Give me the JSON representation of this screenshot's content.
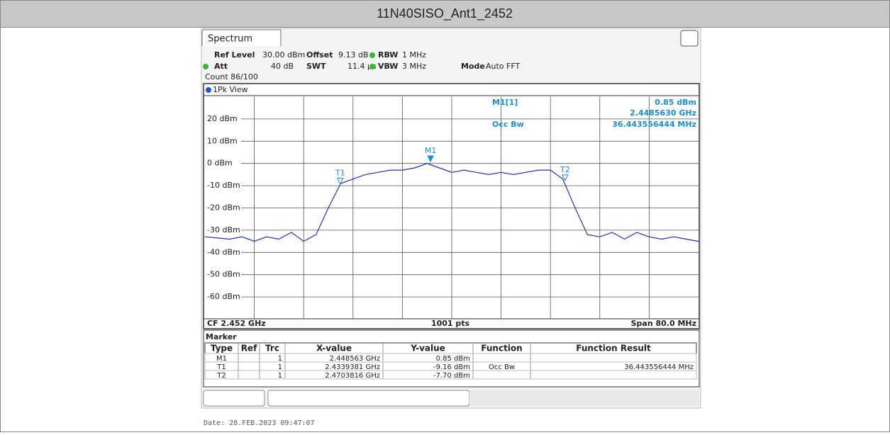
{
  "window_title": "11N40SISO_Ant1_2452",
  "tab": "Spectrum",
  "settings": {
    "ref_level_label": "Ref Level",
    "ref_level": "30.00 dBm",
    "offset_label": "Offset",
    "offset": "9.13 dB",
    "rbw_label": "RBW",
    "rbw": "1 MHz",
    "att_label": "Att",
    "att": "40 dB",
    "swt_label": "SWT",
    "swt": "11.4 µs",
    "vbw_label": "VBW",
    "vbw": "3 MHz",
    "mode_label": "Mode",
    "mode": "Auto FFT",
    "count": "Count 86/100"
  },
  "view_label": "1Pk View",
  "info": {
    "marker": "M1[1]",
    "level": "0.85 dBm",
    "freq": "2.4485630 GHz",
    "function": "Occ Bw",
    "result": "36.443556444 MHz"
  },
  "footer": {
    "cf": "CF 2.452 GHz",
    "pts": "1001 pts",
    "span": "Span 80.0 MHz"
  },
  "chart_data": {
    "type": "line",
    "x": [
      2.412,
      2.414,
      2.416,
      2.418,
      2.42,
      2.422,
      2.424,
      2.426,
      2.428,
      2.43,
      2.432,
      2.434,
      2.436,
      2.438,
      2.44,
      2.442,
      2.444,
      2.446,
      2.448,
      2.45,
      2.452,
      2.454,
      2.456,
      2.458,
      2.46,
      2.462,
      2.464,
      2.466,
      2.468,
      2.47,
      2.472,
      2.474,
      2.476,
      2.478,
      2.48,
      2.482,
      2.484,
      2.486,
      2.488,
      2.49,
      2.492
    ],
    "series": [
      {
        "name": "1Pk View",
        "color": "#2233aa",
        "values": [
          -33,
          -33.5,
          -34,
          -33,
          -35,
          -33,
          -34,
          -31,
          -35,
          -32,
          -20,
          -9,
          -7,
          -5,
          -4,
          -3,
          -3,
          -2,
          0,
          -2,
          -4,
          -3,
          -4,
          -5,
          -4,
          -5,
          -4,
          -3,
          -3,
          -7,
          -20,
          -32,
          -33,
          -31,
          -34,
          -31,
          -33,
          -34,
          -33,
          -34,
          -35
        ]
      }
    ],
    "xlim": [
      2.412,
      2.492
    ],
    "ylim": [
      -70,
      30
    ],
    "yticks": [
      {
        "value": 20,
        "label": "20 dBm"
      },
      {
        "value": 10,
        "label": "10 dBm"
      },
      {
        "value": 0,
        "label": "0 dBm"
      },
      {
        "value": -10,
        "label": "-10 dBm"
      },
      {
        "value": -20,
        "label": "-20 dBm"
      },
      {
        "value": -30,
        "label": "-30 dBm"
      },
      {
        "value": -40,
        "label": "-40 dBm"
      },
      {
        "value": -50,
        "label": "-50 dBm"
      },
      {
        "value": -60,
        "label": "-60 dBm"
      }
    ],
    "grid": true,
    "markers": [
      {
        "name": "M1",
        "x": 2.448563,
        "y": 0.85
      },
      {
        "name": "T1",
        "x": 2.4339381,
        "y": -9.16
      },
      {
        "name": "T2",
        "x": 2.4703816,
        "y": -7.7
      }
    ]
  },
  "marker_table": {
    "title": "Marker",
    "columns": [
      "Type",
      "Ref",
      "Trc",
      "X-value",
      "Y-value",
      "Function",
      "Function Result"
    ],
    "rows": [
      [
        "M1",
        "",
        "1",
        "2.448563 GHz",
        "0.85 dBm",
        "",
        ""
      ],
      [
        "T1",
        "",
        "1",
        "2.4339381 GHz",
        "-9.16 dBm",
        "Occ Bw",
        "36.443556444 MHz"
      ],
      [
        "T2",
        "",
        "1",
        "2.4703816 GHz",
        "-7.70 dBm",
        "",
        ""
      ]
    ]
  },
  "date": "Date: 28.FEB.2023  09:47:07"
}
